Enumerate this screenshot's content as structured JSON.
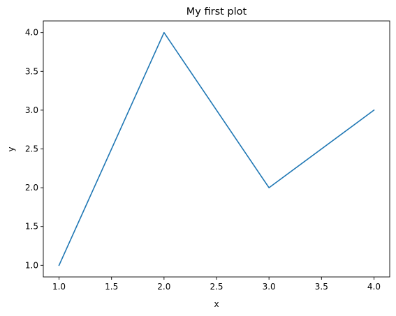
{
  "chart_data": {
    "type": "line",
    "title": "My first plot",
    "xlabel": "x",
    "ylabel": "y",
    "x": [
      1,
      2,
      3,
      4
    ],
    "series": [
      {
        "values": [
          1,
          4,
          2,
          3
        ],
        "color": "#1f77b4"
      }
    ],
    "xlim": [
      0.85,
      4.15
    ],
    "ylim": [
      0.85,
      4.15
    ],
    "xticks": [
      1.0,
      1.5,
      2.0,
      2.5,
      3.0,
      3.5,
      4.0
    ],
    "xtick_labels": [
      "1.0",
      "1.5",
      "2.0",
      "2.5",
      "3.0",
      "3.5",
      "4.0"
    ],
    "yticks": [
      1.0,
      1.5,
      2.0,
      2.5,
      3.0,
      3.5,
      4.0
    ],
    "ytick_labels": [
      "1.0",
      "1.5",
      "2.0",
      "2.5",
      "3.0",
      "3.5",
      "4.0"
    ],
    "grid": false,
    "legend": false
  }
}
